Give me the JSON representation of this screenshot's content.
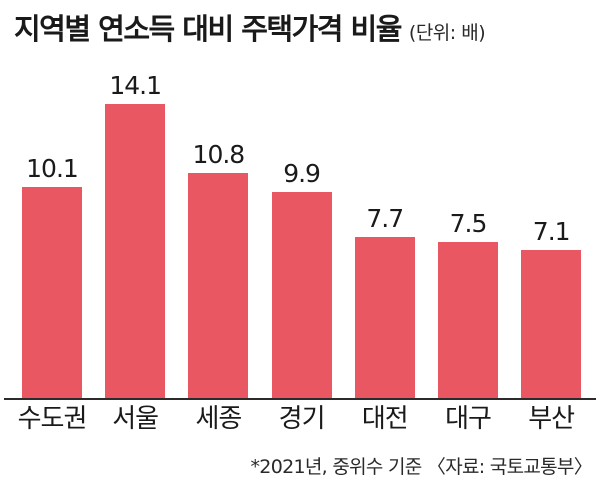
{
  "header": {
    "title": "지역별 연소득 대비 주택가격 비율",
    "unit": "(단위: 배)"
  },
  "footer": {
    "note": "*2021년, 중위수 기준 〈자료: 국토교통부〉"
  },
  "colors": {
    "bar": "#e95862",
    "axis": "#2b2b2b",
    "text": "#1a1a1a"
  },
  "chart_data": {
    "type": "bar",
    "title": "지역별 연소득 대비 주택가격 비율",
    "xlabel": "",
    "ylabel": "",
    "unit": "배",
    "categories": [
      "수도권",
      "서울",
      "세종",
      "경기",
      "대전",
      "대구",
      "부산"
    ],
    "values": [
      10.1,
      14.1,
      10.8,
      9.9,
      7.7,
      7.5,
      7.1
    ],
    "value_labels": [
      "10.1",
      "14.1",
      "10.8",
      "9.9",
      "7.7",
      "7.5",
      "7.1"
    ],
    "ylim": [
      0,
      14.1
    ],
    "grid": false,
    "legend": "none"
  }
}
